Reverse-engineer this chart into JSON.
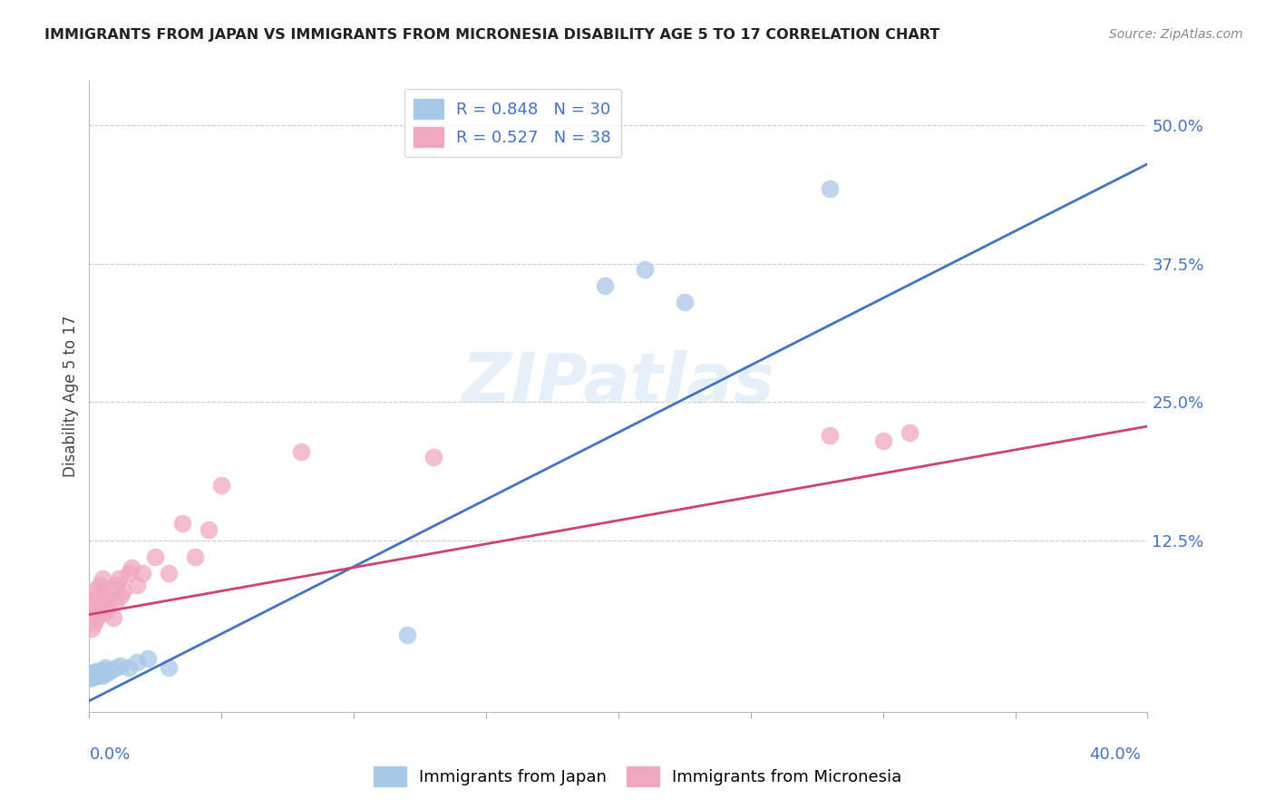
{
  "title": "IMMIGRANTS FROM JAPAN VS IMMIGRANTS FROM MICRONESIA DISABILITY AGE 5 TO 17 CORRELATION CHART",
  "source": "Source: ZipAtlas.com",
  "ylabel": "Disability Age 5 to 17",
  "ytick_labels": [
    "12.5%",
    "25.0%",
    "37.5%",
    "50.0%"
  ],
  "ytick_values": [
    0.125,
    0.25,
    0.375,
    0.5
  ],
  "xlim": [
    0.0,
    0.4
  ],
  "ylim": [
    -0.03,
    0.54
  ],
  "japan_color": "#a8c8e8",
  "micronesia_color": "#f0a8c0",
  "japan_line_color": "#4472c4",
  "micronesia_line_color": "#d04070",
  "japan_R": 0.848,
  "japan_N": 30,
  "micronesia_R": 0.527,
  "micronesia_N": 38,
  "watermark": "ZIPatlas",
  "japan_points_x": [
    0.0,
    0.0,
    0.001,
    0.001,
    0.001,
    0.002,
    0.002,
    0.002,
    0.003,
    0.003,
    0.003,
    0.004,
    0.004,
    0.005,
    0.005,
    0.006,
    0.006,
    0.007,
    0.008,
    0.01,
    0.012,
    0.015,
    0.018,
    0.022,
    0.03,
    0.195,
    0.21,
    0.225,
    0.28,
    0.12
  ],
  "japan_points_y": [
    0.0,
    0.002,
    0.001,
    0.003,
    0.004,
    0.002,
    0.004,
    0.006,
    0.003,
    0.005,
    0.007,
    0.004,
    0.006,
    0.003,
    0.008,
    0.005,
    0.01,
    0.006,
    0.008,
    0.01,
    0.012,
    0.01,
    0.015,
    0.018,
    0.01,
    0.355,
    0.37,
    0.34,
    0.443,
    0.04
  ],
  "micronesia_points_x": [
    0.0,
    0.0,
    0.001,
    0.001,
    0.002,
    0.002,
    0.002,
    0.003,
    0.003,
    0.004,
    0.004,
    0.005,
    0.005,
    0.006,
    0.006,
    0.007,
    0.008,
    0.009,
    0.01,
    0.01,
    0.011,
    0.012,
    0.013,
    0.015,
    0.016,
    0.018,
    0.02,
    0.025,
    0.03,
    0.035,
    0.04,
    0.045,
    0.05,
    0.08,
    0.13,
    0.28,
    0.3,
    0.31
  ],
  "micronesia_points_y": [
    0.055,
    0.06,
    0.045,
    0.07,
    0.05,
    0.065,
    0.08,
    0.055,
    0.075,
    0.06,
    0.085,
    0.07,
    0.09,
    0.06,
    0.075,
    0.065,
    0.08,
    0.055,
    0.07,
    0.085,
    0.09,
    0.075,
    0.08,
    0.095,
    0.1,
    0.085,
    0.095,
    0.11,
    0.095,
    0.14,
    0.11,
    0.135,
    0.175,
    0.205,
    0.2,
    0.22,
    0.215,
    0.222
  ],
  "japan_line_x0": 0.0,
  "japan_line_y0": -0.02,
  "japan_line_x1": 0.4,
  "japan_line_y1": 0.465,
  "micro_line_x0": 0.0,
  "micro_line_y0": 0.058,
  "micro_line_x1": 0.4,
  "micro_line_y1": 0.228
}
